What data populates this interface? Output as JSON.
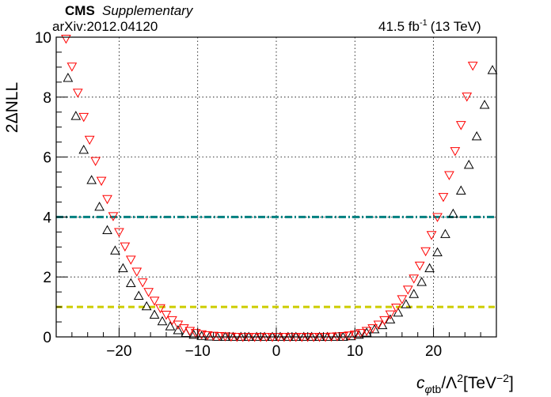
{
  "header": {
    "experiment": "CMS",
    "status": "Supplementary",
    "arxiv": "arXiv:2012.04120",
    "lumi_value": "41.5 fb",
    "lumi_exp": "-1",
    "lumi_energy": "(13 TeV)"
  },
  "colors": {
    "series_black": "#000000",
    "series_red": "#ff0000",
    "line_2sigma": "#008080",
    "line_1sigma": "#cccc00",
    "grid": "#000000"
  },
  "chart_data": {
    "type": "scatter",
    "xlabel": "c_{φtb}/Λ^2[TeV^-2]",
    "ylabel": "2ΔNLL",
    "xlim": [
      -28,
      28
    ],
    "ylim": [
      0,
      10
    ],
    "x_ticks": [
      -20,
      -10,
      0,
      10,
      20
    ],
    "y_ticks": [
      0,
      2,
      4,
      6,
      8,
      10
    ],
    "grid": true,
    "x_tick_labels": [
      "−20",
      "−10",
      "0",
      "10",
      "20"
    ],
    "y_tick_labels": [
      "0",
      "2",
      "4",
      "6",
      "8",
      "10"
    ],
    "series": [
      {
        "marker": "triangle-up-open",
        "color": "#000000",
        "x": [
          -27.5,
          -26.5,
          -25.5,
          -24.5,
          -23.5,
          -22.5,
          -21.5,
          -20.5,
          -19.5,
          -18.5,
          -17.5,
          -16.5,
          -15.5,
          -14.5,
          -13.5,
          -12.5,
          -11.5,
          -10.5,
          -9.5,
          -8.5,
          -7.5,
          -6.5,
          -5.5,
          -4.5,
          -3.5,
          -2.5,
          -1.5,
          -0.5,
          0.5,
          1.5,
          2.5,
          3.5,
          4.5,
          5.5,
          6.5,
          7.5,
          8.5,
          9.5,
          10.5,
          11.5,
          12.5,
          13.5,
          14.5,
          15.5,
          16.5,
          17.5,
          18.5,
          19.5,
          20.5,
          21.5,
          22.5,
          23.5,
          24.5,
          25.5,
          26.5,
          27.5
        ],
        "y": [
          10.05,
          8.64,
          7.37,
          6.24,
          5.23,
          4.34,
          3.56,
          2.88,
          2.29,
          1.79,
          1.37,
          1.02,
          0.74,
          0.52,
          0.35,
          0.22,
          0.13,
          0.07,
          0.03,
          0.01,
          0.0,
          0.0,
          0.0,
          0.0,
          0.0,
          0.0,
          0.0,
          0.0,
          0.0,
          0.0,
          0.0,
          0.0,
          0.0,
          0.0,
          0.0,
          0.0,
          0.0,
          0.02,
          0.07,
          0.14,
          0.25,
          0.39,
          0.58,
          0.81,
          1.09,
          1.43,
          1.83,
          2.29,
          2.82,
          3.43,
          4.11,
          4.88,
          5.74,
          6.69,
          7.74,
          8.9
        ]
      },
      {
        "marker": "triangle-down-open",
        "color": "#ff0000",
        "x": [
          -27.5,
          -26.75,
          -26,
          -25.25,
          -24.5,
          -23.75,
          -23,
          -22.25,
          -21.5,
          -20.75,
          -20,
          -19.25,
          -18.5,
          -17.75,
          -17,
          -16.25,
          -15.5,
          -14.75,
          -14,
          -13.25,
          -12.5,
          -11.75,
          -11,
          -10.25,
          -9.5,
          -8.75,
          -8,
          -7.25,
          -6.5,
          -5.75,
          -5,
          -4.25,
          -3.5,
          -2.75,
          -2,
          -1.25,
          -0.5,
          0.25,
          1,
          1.75,
          2.5,
          3.25,
          4,
          4.75,
          5.5,
          6.25,
          7,
          7.75,
          8.5,
          9.25,
          10,
          10.75,
          11.5,
          12.25,
          13,
          13.75,
          14.5,
          15.25,
          16,
          16.75,
          17.5,
          18.25,
          19,
          19.75,
          20.5,
          21.25,
          22,
          22.75,
          23.5,
          24.25,
          25,
          25.75
        ],
        "y": [
          10.93,
          9.95,
          9.02,
          8.15,
          7.34,
          6.58,
          5.87,
          5.21,
          4.6,
          4.03,
          3.5,
          3.02,
          2.58,
          2.18,
          1.82,
          1.5,
          1.21,
          0.96,
          0.74,
          0.56,
          0.41,
          0.29,
          0.2,
          0.13,
          0.09,
          0.06,
          0.04,
          0.03,
          0.02,
          0.01,
          0.0,
          0.0,
          0.0,
          0.0,
          0.0,
          0.0,
          0.0,
          0.0,
          0.0,
          0.0,
          0.0,
          0.0,
          0.0,
          0.0,
          0.0,
          0.0,
          0.01,
          0.02,
          0.03,
          0.05,
          0.08,
          0.13,
          0.2,
          0.29,
          0.41,
          0.56,
          0.75,
          0.98,
          1.26,
          1.58,
          1.95,
          2.38,
          2.86,
          3.4,
          4.0,
          4.67,
          5.4,
          6.2,
          7.07,
          8.02,
          9.05,
          10.16
        ]
      }
    ],
    "hlines": [
      {
        "y": 4,
        "color": "#008080",
        "style": "dash-dot"
      },
      {
        "y": 1,
        "color": "#cccc00",
        "style": "dashed"
      }
    ]
  }
}
